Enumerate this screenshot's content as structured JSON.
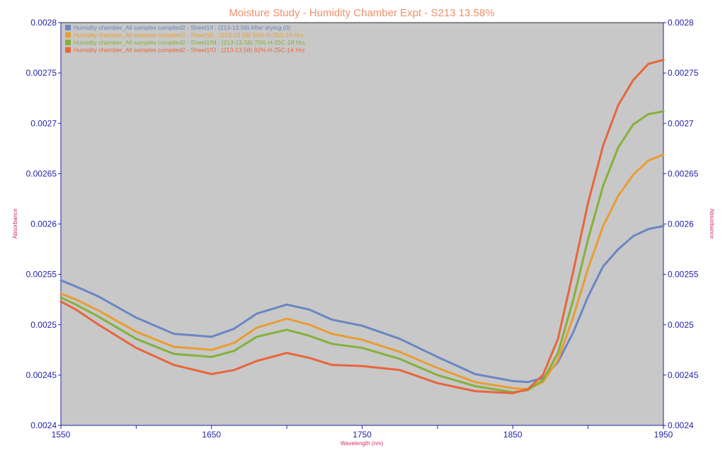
{
  "chart_data": {
    "type": "line",
    "title": "Moisture Study - Humidity Chamber Expt - S213 13.58%",
    "xlabel": "Wavelength (nm)",
    "ylabel": "Absorbance",
    "ylabel_right": "Absorbance",
    "xlim": [
      1550,
      1950
    ],
    "ylim": [
      0.0024,
      0.0028
    ],
    "x_ticks": [
      1550,
      1650,
      1750,
      1850,
      1950
    ],
    "y_ticks": [
      "0.0024",
      "0.00245",
      "0.0025",
      "0.00255",
      "0.0026",
      "0.00265",
      "0.0027",
      "0.00275",
      "0.0028"
    ],
    "grid": false,
    "legend_position": "top-left",
    "background": "#c8c8c8",
    "x": [
      1550,
      1560,
      1575,
      1600,
      1625,
      1650,
      1665,
      1680,
      1700,
      1715,
      1730,
      1750,
      1775,
      1800,
      1825,
      1850,
      1860,
      1870,
      1880,
      1890,
      1900,
      1910,
      1920,
      1930,
      1940,
      1950
    ],
    "series": [
      {
        "name": "Humidity chamber_All samples compiled2 - Sheet1!I : (213-13.58) After drying (0)",
        "color": "#6a86c2",
        "values": [
          0.002544,
          0.002538,
          0.002528,
          0.002507,
          0.002491,
          0.002488,
          0.002496,
          0.002511,
          0.00252,
          0.002515,
          0.002505,
          0.002499,
          0.002486,
          0.002468,
          0.002451,
          0.002444,
          0.002443,
          0.002447,
          0.002463,
          0.002492,
          0.002528,
          0.002558,
          0.002575,
          0.002588,
          0.002595,
          0.002598
        ]
      },
      {
        "name": "Humidity chamber_All samples compiled2 - Sheet1!L : (213-13.58) 50% H-25C-14 Hrs",
        "color": "#e99d32",
        "values": [
          0.002531,
          0.002525,
          0.002514,
          0.002493,
          0.002478,
          0.002475,
          0.002482,
          0.002497,
          0.002506,
          0.0025,
          0.002491,
          0.002485,
          0.002473,
          0.002457,
          0.002443,
          0.002437,
          0.002436,
          0.002443,
          0.002465,
          0.002507,
          0.002556,
          0.002598,
          0.002628,
          0.002649,
          0.002663,
          0.002669
        ]
      },
      {
        "name": "Humidity chamber_All samples compiled2 - Sheet1!M : (213-13.58) 75% H-25C-18 Hrs",
        "color": "#86b03a",
        "values": [
          0.002527,
          0.00252,
          0.002508,
          0.002486,
          0.002471,
          0.002468,
          0.002474,
          0.002488,
          0.002495,
          0.002489,
          0.002481,
          0.002477,
          0.002466,
          0.00245,
          0.002439,
          0.002433,
          0.002435,
          0.002445,
          0.002472,
          0.002524,
          0.002585,
          0.002638,
          0.002676,
          0.002699,
          0.002709,
          0.002712
        ]
      },
      {
        "name": "Humidity chamber_All samples compiled2 - Sheet1!O : (213-13.58) 92% H-25C-14 Hrs",
        "color": "#e8653c",
        "values": [
          0.002523,
          0.002515,
          0.0025,
          0.002477,
          0.00246,
          0.002451,
          0.002455,
          0.002464,
          0.002472,
          0.002467,
          0.00246,
          0.002459,
          0.002455,
          0.002442,
          0.002434,
          0.002432,
          0.002436,
          0.00245,
          0.002486,
          0.002552,
          0.002621,
          0.002678,
          0.002718,
          0.002743,
          0.002759,
          0.002763
        ]
      }
    ]
  }
}
